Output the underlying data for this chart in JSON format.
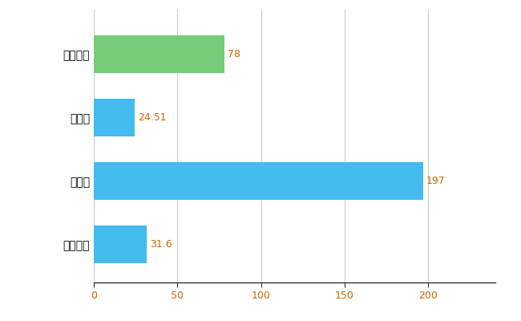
{
  "categories": [
    "宮城野区",
    "県平均",
    "県最大",
    "全国平均"
  ],
  "values": [
    78,
    24.51,
    197,
    31.6
  ],
  "bar_colors": [
    "#77cc77",
    "#44bbee",
    "#44bbee",
    "#44bbee"
  ],
  "value_labels": [
    "78",
    "24.51",
    "197",
    "31.6"
  ],
  "xlim": [
    0,
    240
  ],
  "xticks": [
    0,
    50,
    100,
    150,
    200
  ],
  "background_color": "#ffffff",
  "grid_color": "#cccccc",
  "label_color": "#cc6600",
  "bar_height": 0.6,
  "label_fontsize": 9,
  "tick_fontsize": 9,
  "ytick_fontsize": 10
}
